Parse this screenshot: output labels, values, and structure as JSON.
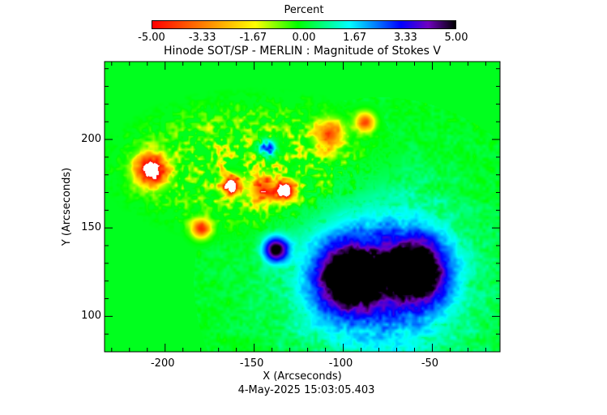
{
  "colorbar": {
    "title": "Percent",
    "range": [
      -5,
      5
    ],
    "tick_labels": [
      "-5.00",
      "-3.33",
      "-1.67",
      "0.00",
      "1.67",
      "3.33",
      "5.00"
    ],
    "colors": [
      "#ff0000",
      "#ff8000",
      "#ffff00",
      "#00ff00",
      "#00ffff",
      "#0000ff",
      "#7000c0",
      "#000000"
    ]
  },
  "chart_data": {
    "type": "heatmap",
    "title": "Hinode SOT/SP - MERLIN : Magnitude of Stokes V",
    "xlabel": "X (Arcseconds)",
    "ylabel": "Y (Arcseconds)",
    "xlim": [
      -234,
      -12
    ],
    "ylim": [
      80,
      244
    ],
    "x_ticks": [
      -200,
      -150,
      -100,
      -50
    ],
    "x_tick_labels": [
      "-200",
      "-150",
      "-100",
      "-50"
    ],
    "y_ticks": [
      100,
      150,
      200
    ],
    "y_tick_labels": [
      "100",
      "150",
      "200"
    ],
    "value_range": [
      -5,
      5
    ],
    "background_value": 0,
    "features": [
      {
        "x": -208,
        "y": 183,
        "r": 10,
        "value": -6
      },
      {
        "x": -163,
        "y": 174,
        "r": 6,
        "value": -6
      },
      {
        "x": -132,
        "y": 171,
        "r": 6,
        "value": -6
      },
      {
        "x": -145,
        "y": 172,
        "r": 9,
        "value": -4
      },
      {
        "x": -180,
        "y": 150,
        "r": 6,
        "value": -4.5
      },
      {
        "x": -108,
        "y": 203,
        "r": 9,
        "value": -4
      },
      {
        "x": -88,
        "y": 210,
        "r": 6,
        "value": -4
      },
      {
        "x": -143,
        "y": 195,
        "r": 5,
        "value": 4
      },
      {
        "x": -138,
        "y": 138,
        "r": 8,
        "value": 5
      },
      {
        "x": -97,
        "y": 122,
        "r": 20,
        "value": 5.5
      },
      {
        "x": -60,
        "y": 126,
        "r": 20,
        "value": 5.5
      },
      {
        "x": -80,
        "y": 120,
        "r": 52,
        "value": 2.8
      }
    ]
  },
  "timestamp": "4-May-2025 15:03:05.403"
}
